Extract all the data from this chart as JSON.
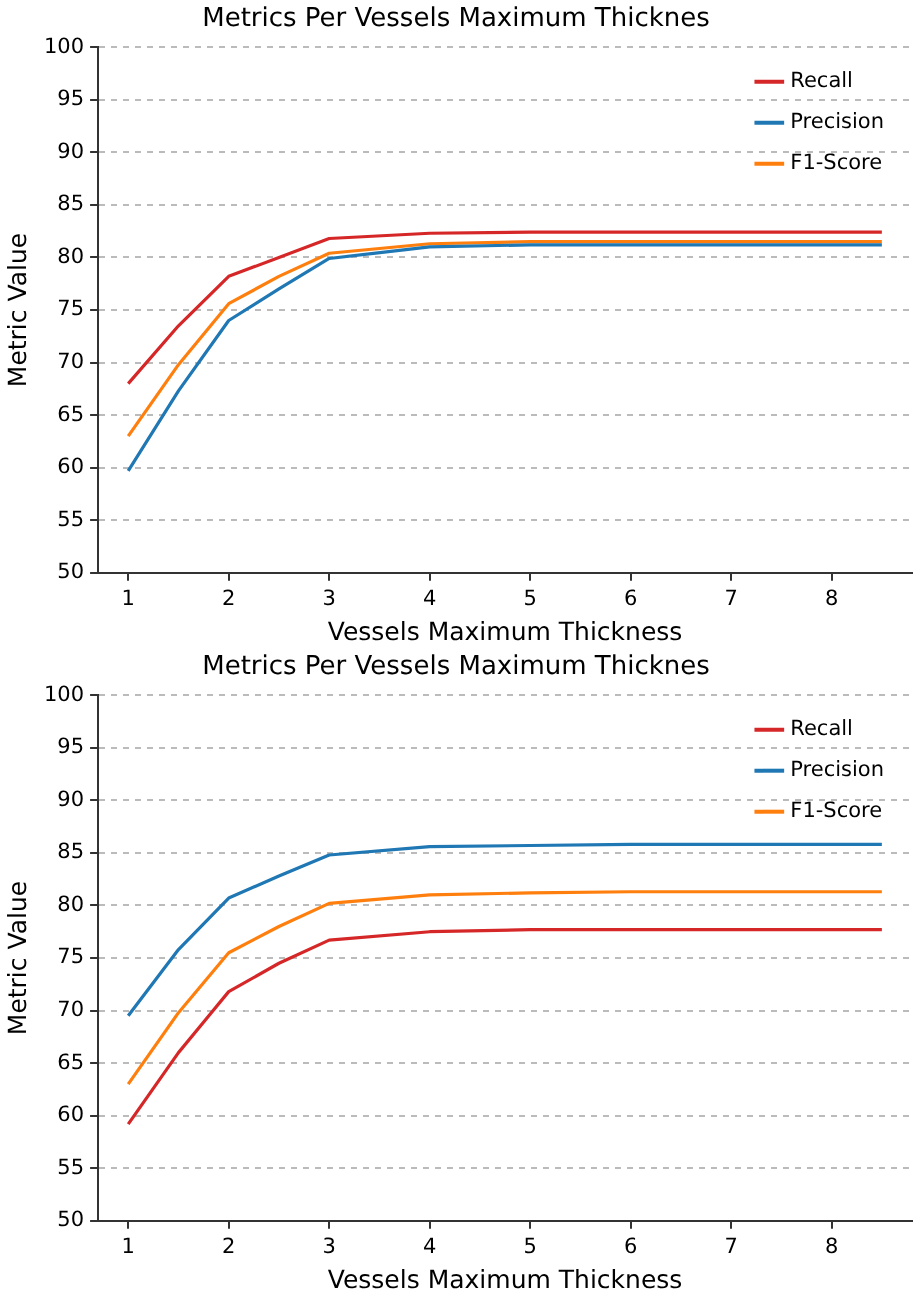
{
  "chart_data": [
    {
      "type": "line",
      "title": "Metrics Per Vessels Maximum Thicknes",
      "xlabel": "Vessels Maximum Thickness",
      "ylabel": "Metric Value",
      "x": [
        1,
        1.5,
        2,
        2.5,
        3,
        4,
        5,
        6,
        7,
        8,
        8.5
      ],
      "xlim": [
        0.7,
        8.8
      ],
      "xticks": [
        1,
        2,
        3,
        4,
        5,
        6,
        7,
        8
      ],
      "ylim": [
        50,
        100
      ],
      "yticks": [
        50,
        55,
        60,
        65,
        70,
        75,
        80,
        85,
        90,
        95,
        100
      ],
      "grid": "y",
      "legend": "top right",
      "series": [
        {
          "name": "Recall",
          "color": "#d62728",
          "values": [
            68,
            73.5,
            78.2,
            80,
            81.8,
            82.3,
            82.4,
            82.4,
            82.4,
            82.4,
            82.4
          ]
        },
        {
          "name": "Precision",
          "color": "#1f77b4",
          "values": [
            59.7,
            67.3,
            74,
            77,
            79.9,
            81,
            81.2,
            81.2,
            81.2,
            81.2,
            81.2
          ]
        },
        {
          "name": "F1-Score",
          "color": "#ff7f0e",
          "values": [
            63,
            69.8,
            75.6,
            78.2,
            80.4,
            81.3,
            81.5,
            81.5,
            81.5,
            81.5,
            81.5
          ]
        }
      ]
    },
    {
      "type": "line",
      "title": "Metrics Per Vessels Maximum Thicknes",
      "xlabel": "Vessels Maximum Thickness",
      "ylabel": "Metric Value",
      "x": [
        1,
        1.5,
        2,
        2.5,
        3,
        4,
        5,
        6,
        7,
        8,
        8.5
      ],
      "xlim": [
        0.7,
        8.8
      ],
      "xticks": [
        1,
        2,
        3,
        4,
        5,
        6,
        7,
        8
      ],
      "ylim": [
        50,
        100
      ],
      "yticks": [
        50,
        55,
        60,
        65,
        70,
        75,
        80,
        85,
        90,
        95,
        100
      ],
      "grid": "y",
      "legend": "top right",
      "series": [
        {
          "name": "Recall",
          "color": "#d62728",
          "values": [
            59.2,
            66,
            71.8,
            74.5,
            76.7,
            77.5,
            77.7,
            77.7,
            77.7,
            77.7,
            77.7
          ]
        },
        {
          "name": "Precision",
          "color": "#1f77b4",
          "values": [
            69.5,
            75.8,
            80.7,
            82.8,
            84.8,
            85.6,
            85.7,
            85.8,
            85.8,
            85.8,
            85.8
          ]
        },
        {
          "name": "F1-Score",
          "color": "#ff7f0e",
          "values": [
            63,
            69.8,
            75.5,
            78,
            80.2,
            81,
            81.2,
            81.3,
            81.3,
            81.3,
            81.3
          ]
        }
      ]
    }
  ]
}
